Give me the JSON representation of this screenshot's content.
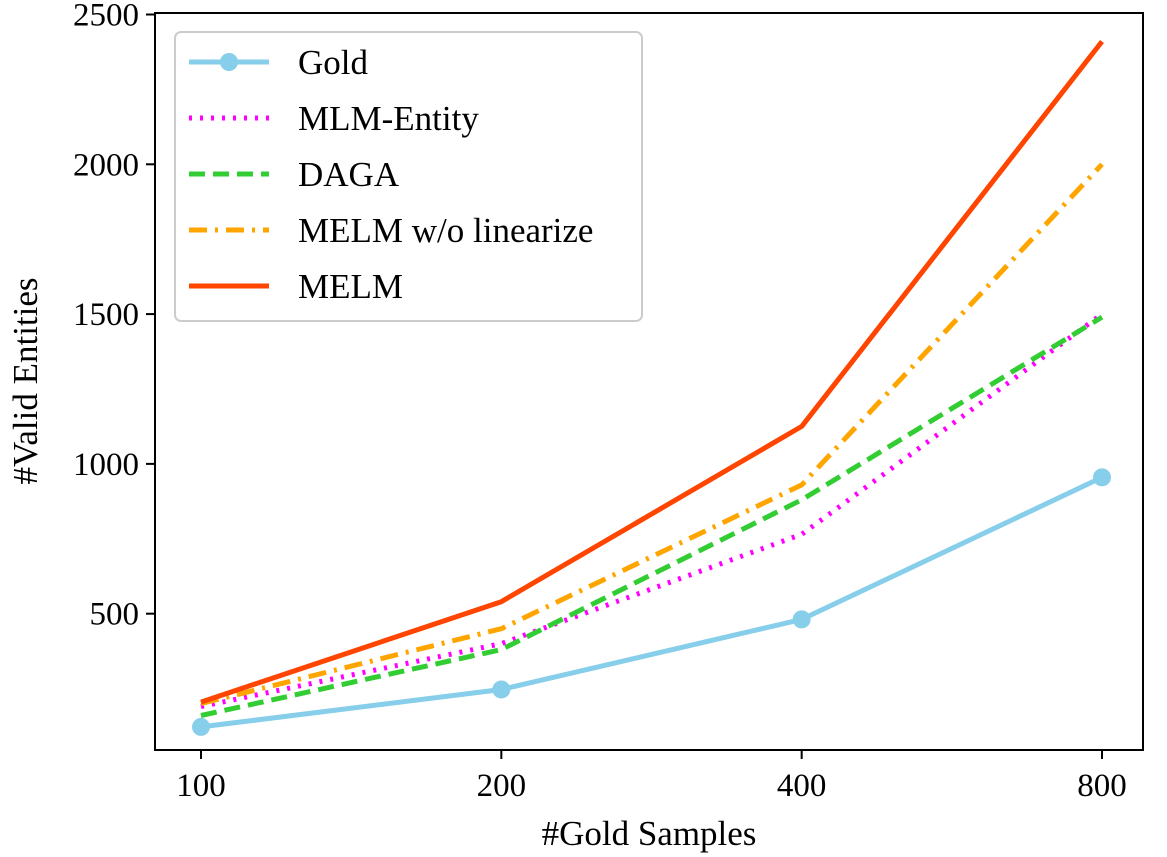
{
  "chart_data": {
    "type": "line",
    "xlabel": "#Gold Samples",
    "ylabel": "#Valid Entities",
    "categories": [
      "100",
      "200",
      "400",
      "800"
    ],
    "ylim": [
      45,
      2505
    ],
    "yticks": [
      500,
      1000,
      1500,
      2000,
      2500
    ],
    "legend_location": "upper-left",
    "series": [
      {
        "name": "Gold",
        "values": [
          122,
          247,
          481,
          955
        ],
        "color": "#87ceeb",
        "style": "solid",
        "marker": "circle"
      },
      {
        "name": "MLM-Entity",
        "values": [
          190,
          400,
          765,
          1500
        ],
        "color": "#ff00ff",
        "style": "dotted",
        "marker": "none"
      },
      {
        "name": "DAGA",
        "values": [
          160,
          380,
          880,
          1490
        ],
        "color": "#32cd32",
        "style": "dashed",
        "marker": "none"
      },
      {
        "name": "MELM w/o linearize",
        "values": [
          200,
          450,
          930,
          2000
        ],
        "color": "#ffa500",
        "style": "dashdot",
        "marker": "none"
      },
      {
        "name": "MELM",
        "values": [
          205,
          540,
          1125,
          2410
        ],
        "color": "#ff4500",
        "style": "solid",
        "marker": "none"
      }
    ]
  }
}
